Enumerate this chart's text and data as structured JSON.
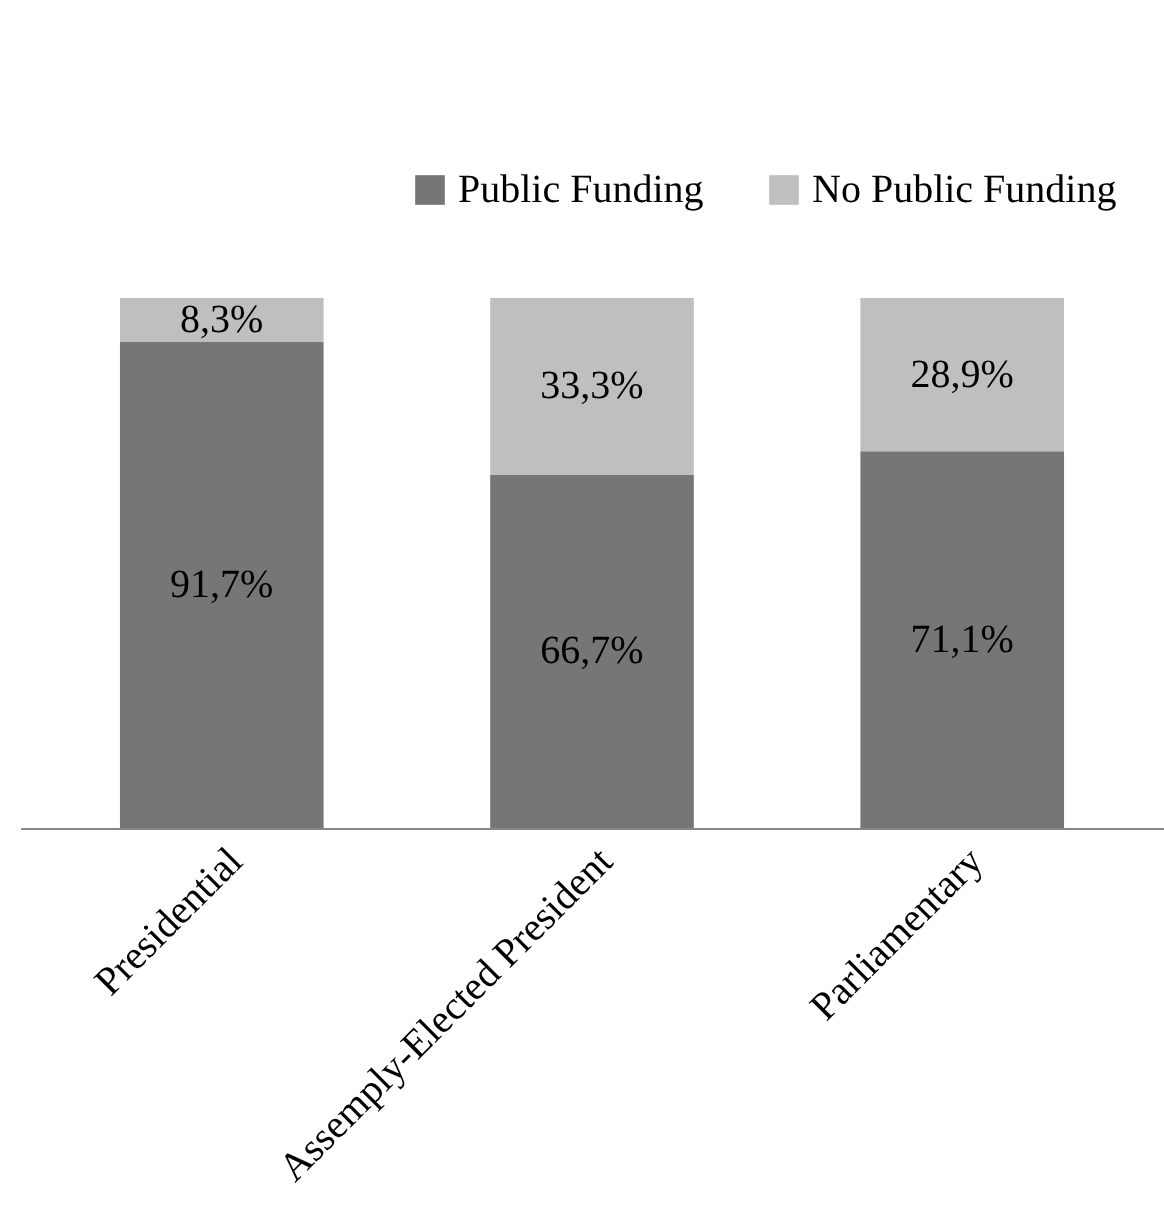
{
  "chart_data": {
    "type": "bar",
    "stacked": true,
    "legend": "top",
    "categories": [
      "Presidential",
      "Assemply-Elected President",
      "Parliamentary"
    ],
    "series": [
      {
        "name": "Public Funding",
        "color": "#767676",
        "values": [
          91.7,
          66.7,
          71.1
        ],
        "value_labels": [
          "91,7%",
          "66,7%",
          "71,1%"
        ]
      },
      {
        "name": "No Public Funding",
        "color": "#bfbfbf",
        "values": [
          8.3,
          33.3,
          28.9
        ],
        "value_labels": [
          "8,3%",
          "33,3%",
          "28,9%"
        ]
      }
    ]
  }
}
